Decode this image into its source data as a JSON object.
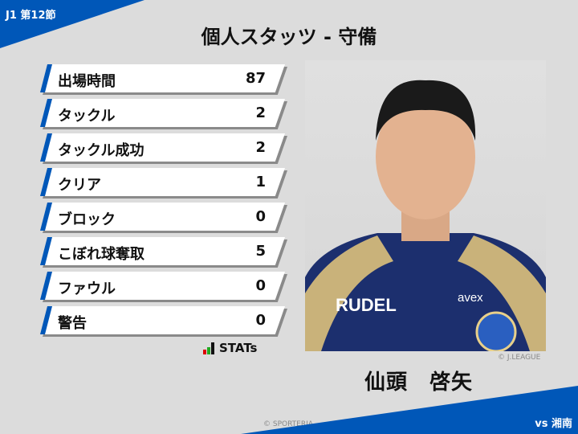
{
  "header": {
    "round": "J1 第12節",
    "title": "個人スタッツ - 守備"
  },
  "stats": [
    {
      "label": "出場時間",
      "value": "87"
    },
    {
      "label": "タックル",
      "value": "2"
    },
    {
      "label": "タックル成功",
      "value": "2"
    },
    {
      "label": "クリア",
      "value": "1"
    },
    {
      "label": "ブロック",
      "value": "0"
    },
    {
      "label": "こぼれ球奪取",
      "value": "5"
    },
    {
      "label": "ファウル",
      "value": "0"
    },
    {
      "label": "警告",
      "value": "0"
    }
  ],
  "logo": {
    "text": "STATs"
  },
  "player": {
    "name": "仙頭　啓矢",
    "photo_credit": "© J.LEAGUE",
    "jersey_sponsor": "RUDEL",
    "jersey_sponsor2": "avex"
  },
  "footer": {
    "credit": "© SPORTERIA",
    "opponent": "vs 湘南"
  },
  "colors": {
    "accent": "#0057b8",
    "background": "#dcdcdc"
  }
}
